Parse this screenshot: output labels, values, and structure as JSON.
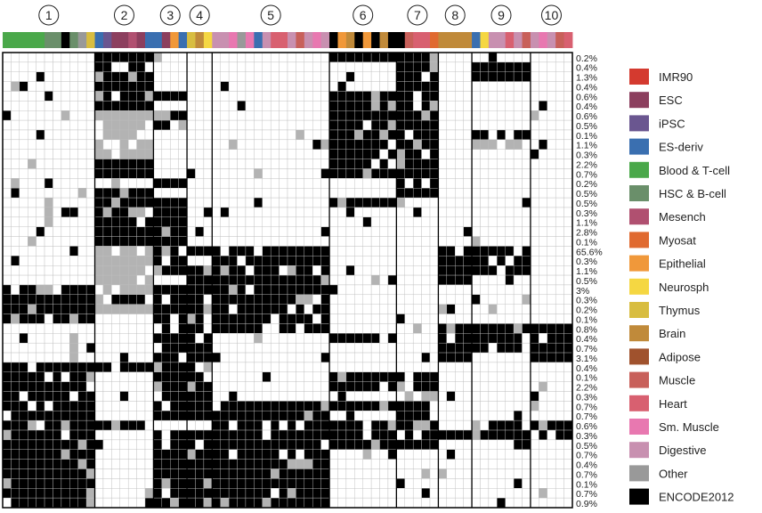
{
  "chart_data": {
    "type": "heatmap",
    "clusters": [
      "1",
      "2",
      "3",
      "4",
      "5",
      "6",
      "7",
      "8",
      "9",
      "10"
    ],
    "cluster_columns": [
      11,
      7,
      4,
      3,
      14,
      8,
      5,
      4,
      7,
      5
    ],
    "cell_values": [
      "absent",
      "weak",
      "strong"
    ],
    "cell_colors": {
      "absent": "#ffffff",
      "weak": "#b3b3b3",
      "strong": "#000000"
    },
    "row_percentages": [
      "0.2%",
      "0.4%",
      "1.3%",
      "0.4%",
      "0.6%",
      "0.4%",
      "0.6%",
      "0.5%",
      "0.1%",
      "1.1%",
      "0.3%",
      "2.2%",
      "0.7%",
      "0.2%",
      "0.5%",
      "0.5%",
      "0.3%",
      "1.1%",
      "2.8%",
      "0.1%",
      "65.6%",
      "0.3%",
      "1.1%",
      "0.5%",
      "3%",
      "0.3%",
      "0.2%",
      "0.1%",
      "0.8%",
      "0.4%",
      "0.7%",
      "3.1%",
      "0.4%",
      "0.1%",
      "2.2%",
      "0.3%",
      "0.7%",
      "0.7%",
      "0.6%",
      "0.3%",
      "0.5%",
      "0.7%",
      "0.4%",
      "0.7%",
      "0.1%",
      "0.7%",
      "0.9%"
    ],
    "legend": [
      {
        "label": "IMR90",
        "color": "#d43a2f"
      },
      {
        "label": "ESC",
        "color": "#8c3f5e"
      },
      {
        "label": "iPSC",
        "color": "#6a5690"
      },
      {
        "label": "ES-deriv",
        "color": "#3a6fb0"
      },
      {
        "label": "Blood & T-cell",
        "color": "#4aa84a"
      },
      {
        "label": "HSC & B-cell",
        "color": "#6a8f6a"
      },
      {
        "label": "Mesench",
        "color": "#b05070"
      },
      {
        "label": "Myosat",
        "color": "#e06a30"
      },
      {
        "label": "Epithelial",
        "color": "#f0983a"
      },
      {
        "label": "Neurosph",
        "color": "#f5d742"
      },
      {
        "label": "Thymus",
        "color": "#d8bd40"
      },
      {
        "label": "Brain",
        "color": "#c08a3a"
      },
      {
        "label": "Adipose",
        "color": "#a0522d"
      },
      {
        "label": "Muscle",
        "color": "#c8605a"
      },
      {
        "label": "Heart",
        "color": "#d86070"
      },
      {
        "label": "Sm. Muscle",
        "color": "#e878b0"
      },
      {
        "label": "Digestive",
        "color": "#c890b0"
      },
      {
        "label": "Other",
        "color": "#999999"
      },
      {
        "label": "ENCODE2012",
        "color": "#000000"
      }
    ],
    "grid": true,
    "legend_position": "right"
  }
}
